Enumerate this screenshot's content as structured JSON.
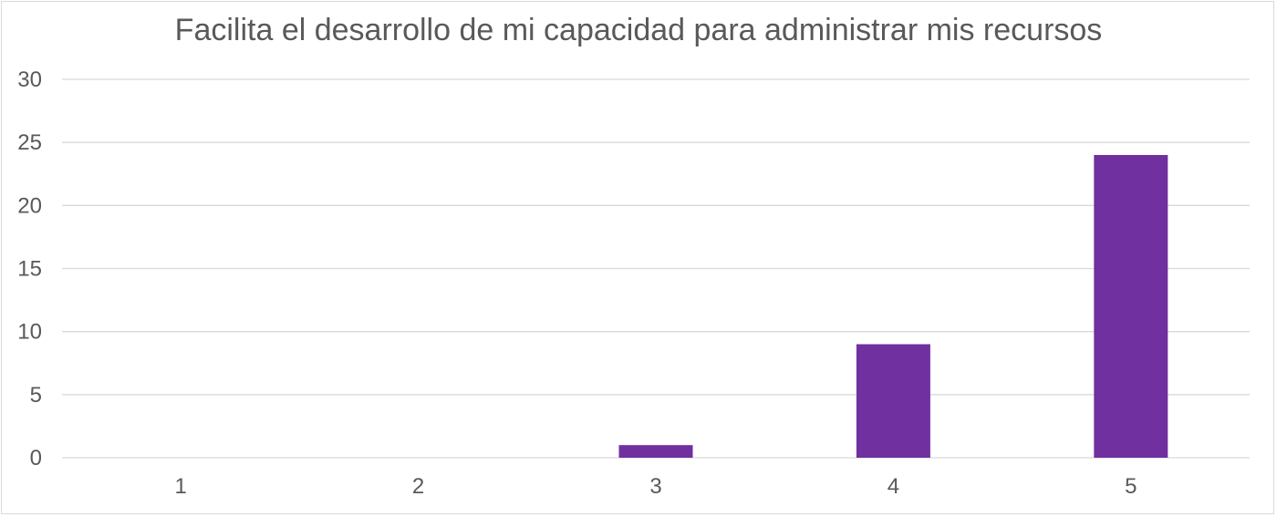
{
  "chart_data": {
    "type": "bar",
    "title": "Facilita el desarrollo de mi capacidad para administrar mis recursos",
    "categories": [
      "1",
      "2",
      "3",
      "4",
      "5"
    ],
    "values": [
      0,
      0,
      1,
      9,
      24
    ],
    "ylim": [
      0,
      30
    ],
    "yticks": [
      0,
      5,
      10,
      15,
      20,
      25,
      30
    ],
    "ytick_labels": [
      "0",
      "5",
      "10",
      "15",
      "20",
      "25",
      "30"
    ],
    "xlabel": "",
    "ylabel": "",
    "grid": true,
    "legend": "none",
    "colors": {
      "bar": "#7030a0",
      "grid": "#d9d9d9",
      "text": "#595959"
    }
  }
}
